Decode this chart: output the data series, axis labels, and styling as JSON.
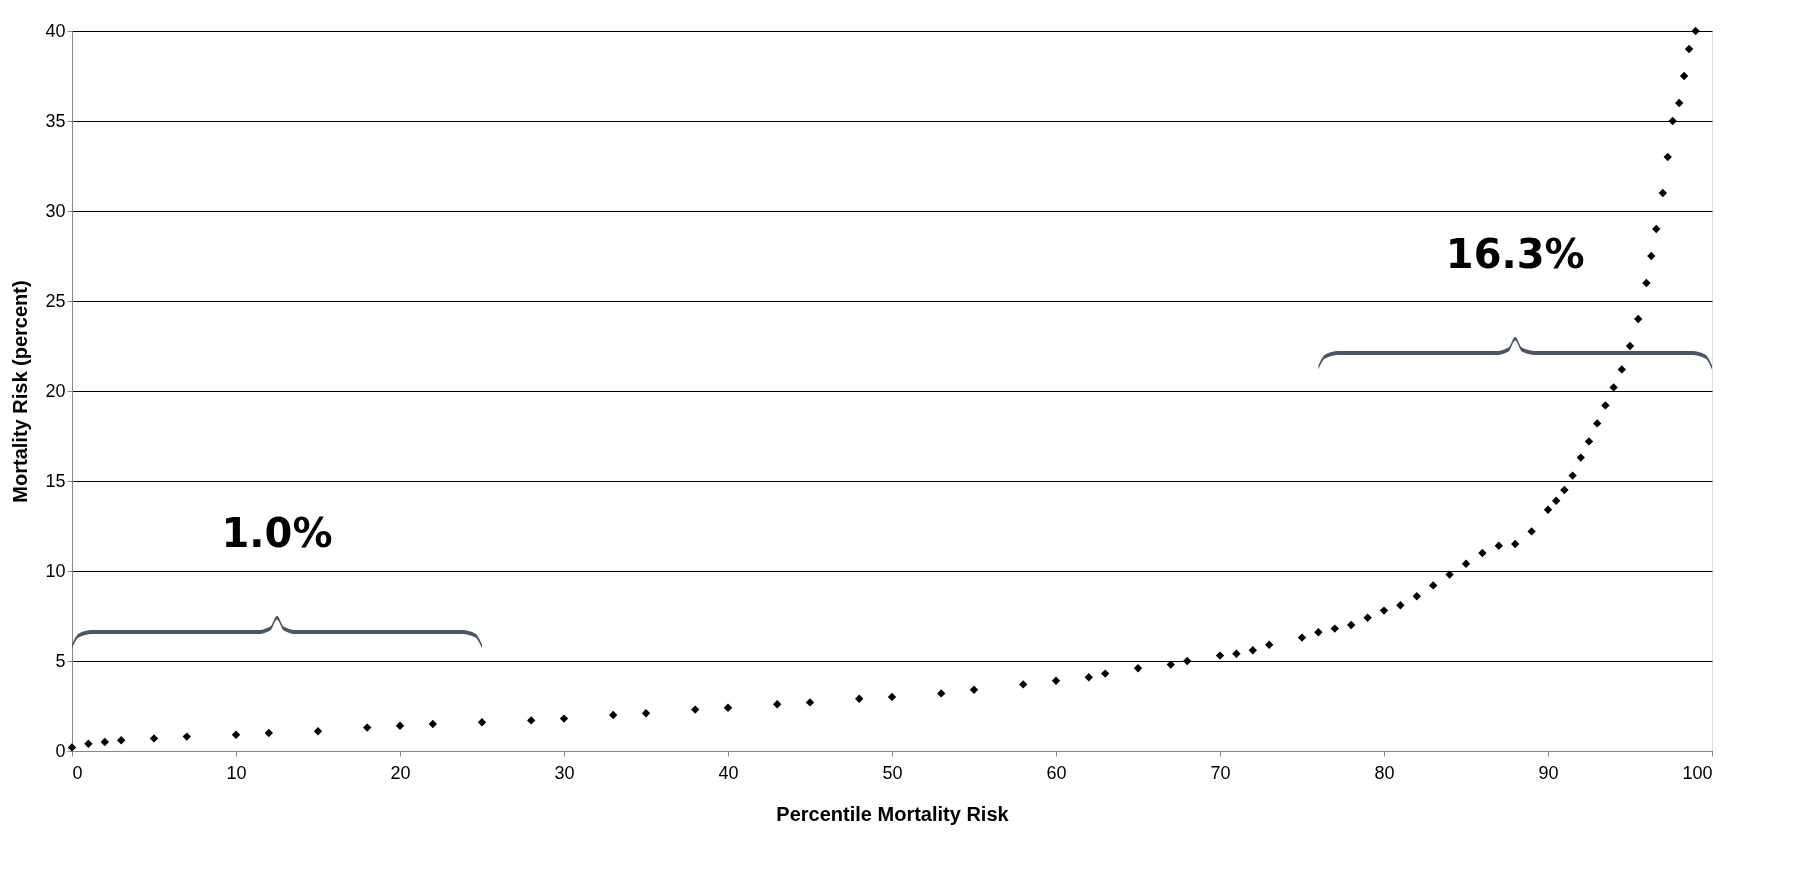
{
  "chart_data": {
    "type": "scatter",
    "xlabel": "Percentile Mortality Risk",
    "ylabel": "Mortality Risk (percent)",
    "x": [
      0,
      1,
      2,
      3,
      5,
      7,
      10,
      12,
      15,
      18,
      20,
      22,
      25,
      28,
      30,
      33,
      35,
      38,
      40,
      43,
      45,
      48,
      50,
      53,
      55,
      58,
      60,
      62,
      63,
      65,
      67,
      68,
      70,
      71,
      72,
      73,
      75,
      76,
      77,
      78,
      79,
      80,
      81,
      82,
      83,
      84,
      85,
      86,
      87,
      88,
      89,
      90,
      90.5,
      91,
      91.5,
      92,
      92.5,
      93,
      93.5,
      94,
      94.5,
      95,
      95.5,
      96,
      96.3,
      96.6,
      97,
      97.3,
      97.6,
      98,
      98.3,
      98.6,
      99
    ],
    "series": [
      {
        "color": "#000000",
        "values": [
          0.2,
          0.4,
          0.5,
          0.6,
          0.7,
          0.8,
          0.9,
          1.0,
          1.1,
          1.3,
          1.4,
          1.5,
          1.6,
          1.7,
          1.8,
          2.0,
          2.1,
          2.3,
          2.4,
          2.6,
          2.7,
          2.9,
          3.0,
          3.2,
          3.4,
          3.7,
          3.9,
          4.1,
          4.3,
          4.6,
          4.8,
          5.0,
          5.3,
          5.4,
          5.6,
          5.9,
          6.3,
          6.6,
          6.8,
          7.0,
          7.4,
          7.8,
          8.1,
          8.6,
          9.2,
          9.8,
          10.4,
          11.0,
          11.4,
          11.5,
          12.2,
          13.4,
          13.9,
          14.5,
          15.3,
          16.3,
          17.2,
          18.2,
          19.2,
          20.2,
          21.2,
          22.5,
          24.0,
          26.0,
          27.5,
          29.0,
          31.0,
          33.0,
          35.0,
          36.0,
          37.5,
          39.0,
          40.0
        ]
      }
    ],
    "xlim": [
      0,
      100
    ],
    "xticks": [
      0,
      10,
      20,
      30,
      40,
      50,
      60,
      70,
      80,
      90,
      100
    ],
    "ylim": [
      0,
      40
    ],
    "yticks": [
      0,
      5,
      10,
      15,
      20,
      25,
      30,
      35,
      40
    ],
    "grid": "y",
    "marker": "diamond",
    "annotations": [
      "1.0%",
      "16.3%"
    ]
  }
}
